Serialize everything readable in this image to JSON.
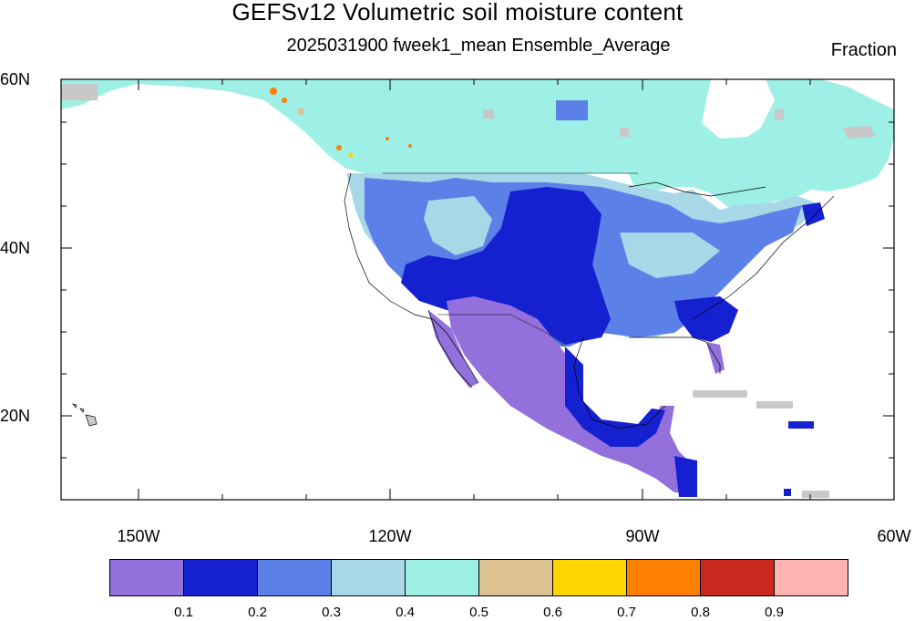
{
  "title": "GEFSv12 Volumetric soil moisture content",
  "subtitle": "2025031900 fweek1_mean Ensemble_Average",
  "units": "Fraction",
  "map": {
    "projection": "cylindrical equidistant",
    "lon_range": [
      -161,
      -60
    ],
    "lat_range": [
      10,
      60
    ],
    "lat_labels": [
      "60N",
      "40N",
      "20N"
    ],
    "lon_labels": [
      "150W",
      "120W",
      "90W",
      "60W"
    ]
  },
  "colorbar": {
    "labels": [
      "0.1",
      "0.2",
      "0.3",
      "0.4",
      "0.5",
      "0.6",
      "0.7",
      "0.8",
      "0.9"
    ],
    "colors": [
      "#9370db",
      "#1520d0",
      "#5b80e8",
      "#a8d8e8",
      "#9eefe5",
      "#dfc291",
      "#ffd700",
      "#ff7f00",
      "#c8281e",
      "#ffb2b2"
    ]
  },
  "regions_colors": {
    "very_dry": "#9370db",
    "dry": "#1520d0",
    "moderate": "#5b80e8",
    "moist": "#a8d8e8",
    "wet": "#9eefe5",
    "missing": "#c8c8c8"
  }
}
